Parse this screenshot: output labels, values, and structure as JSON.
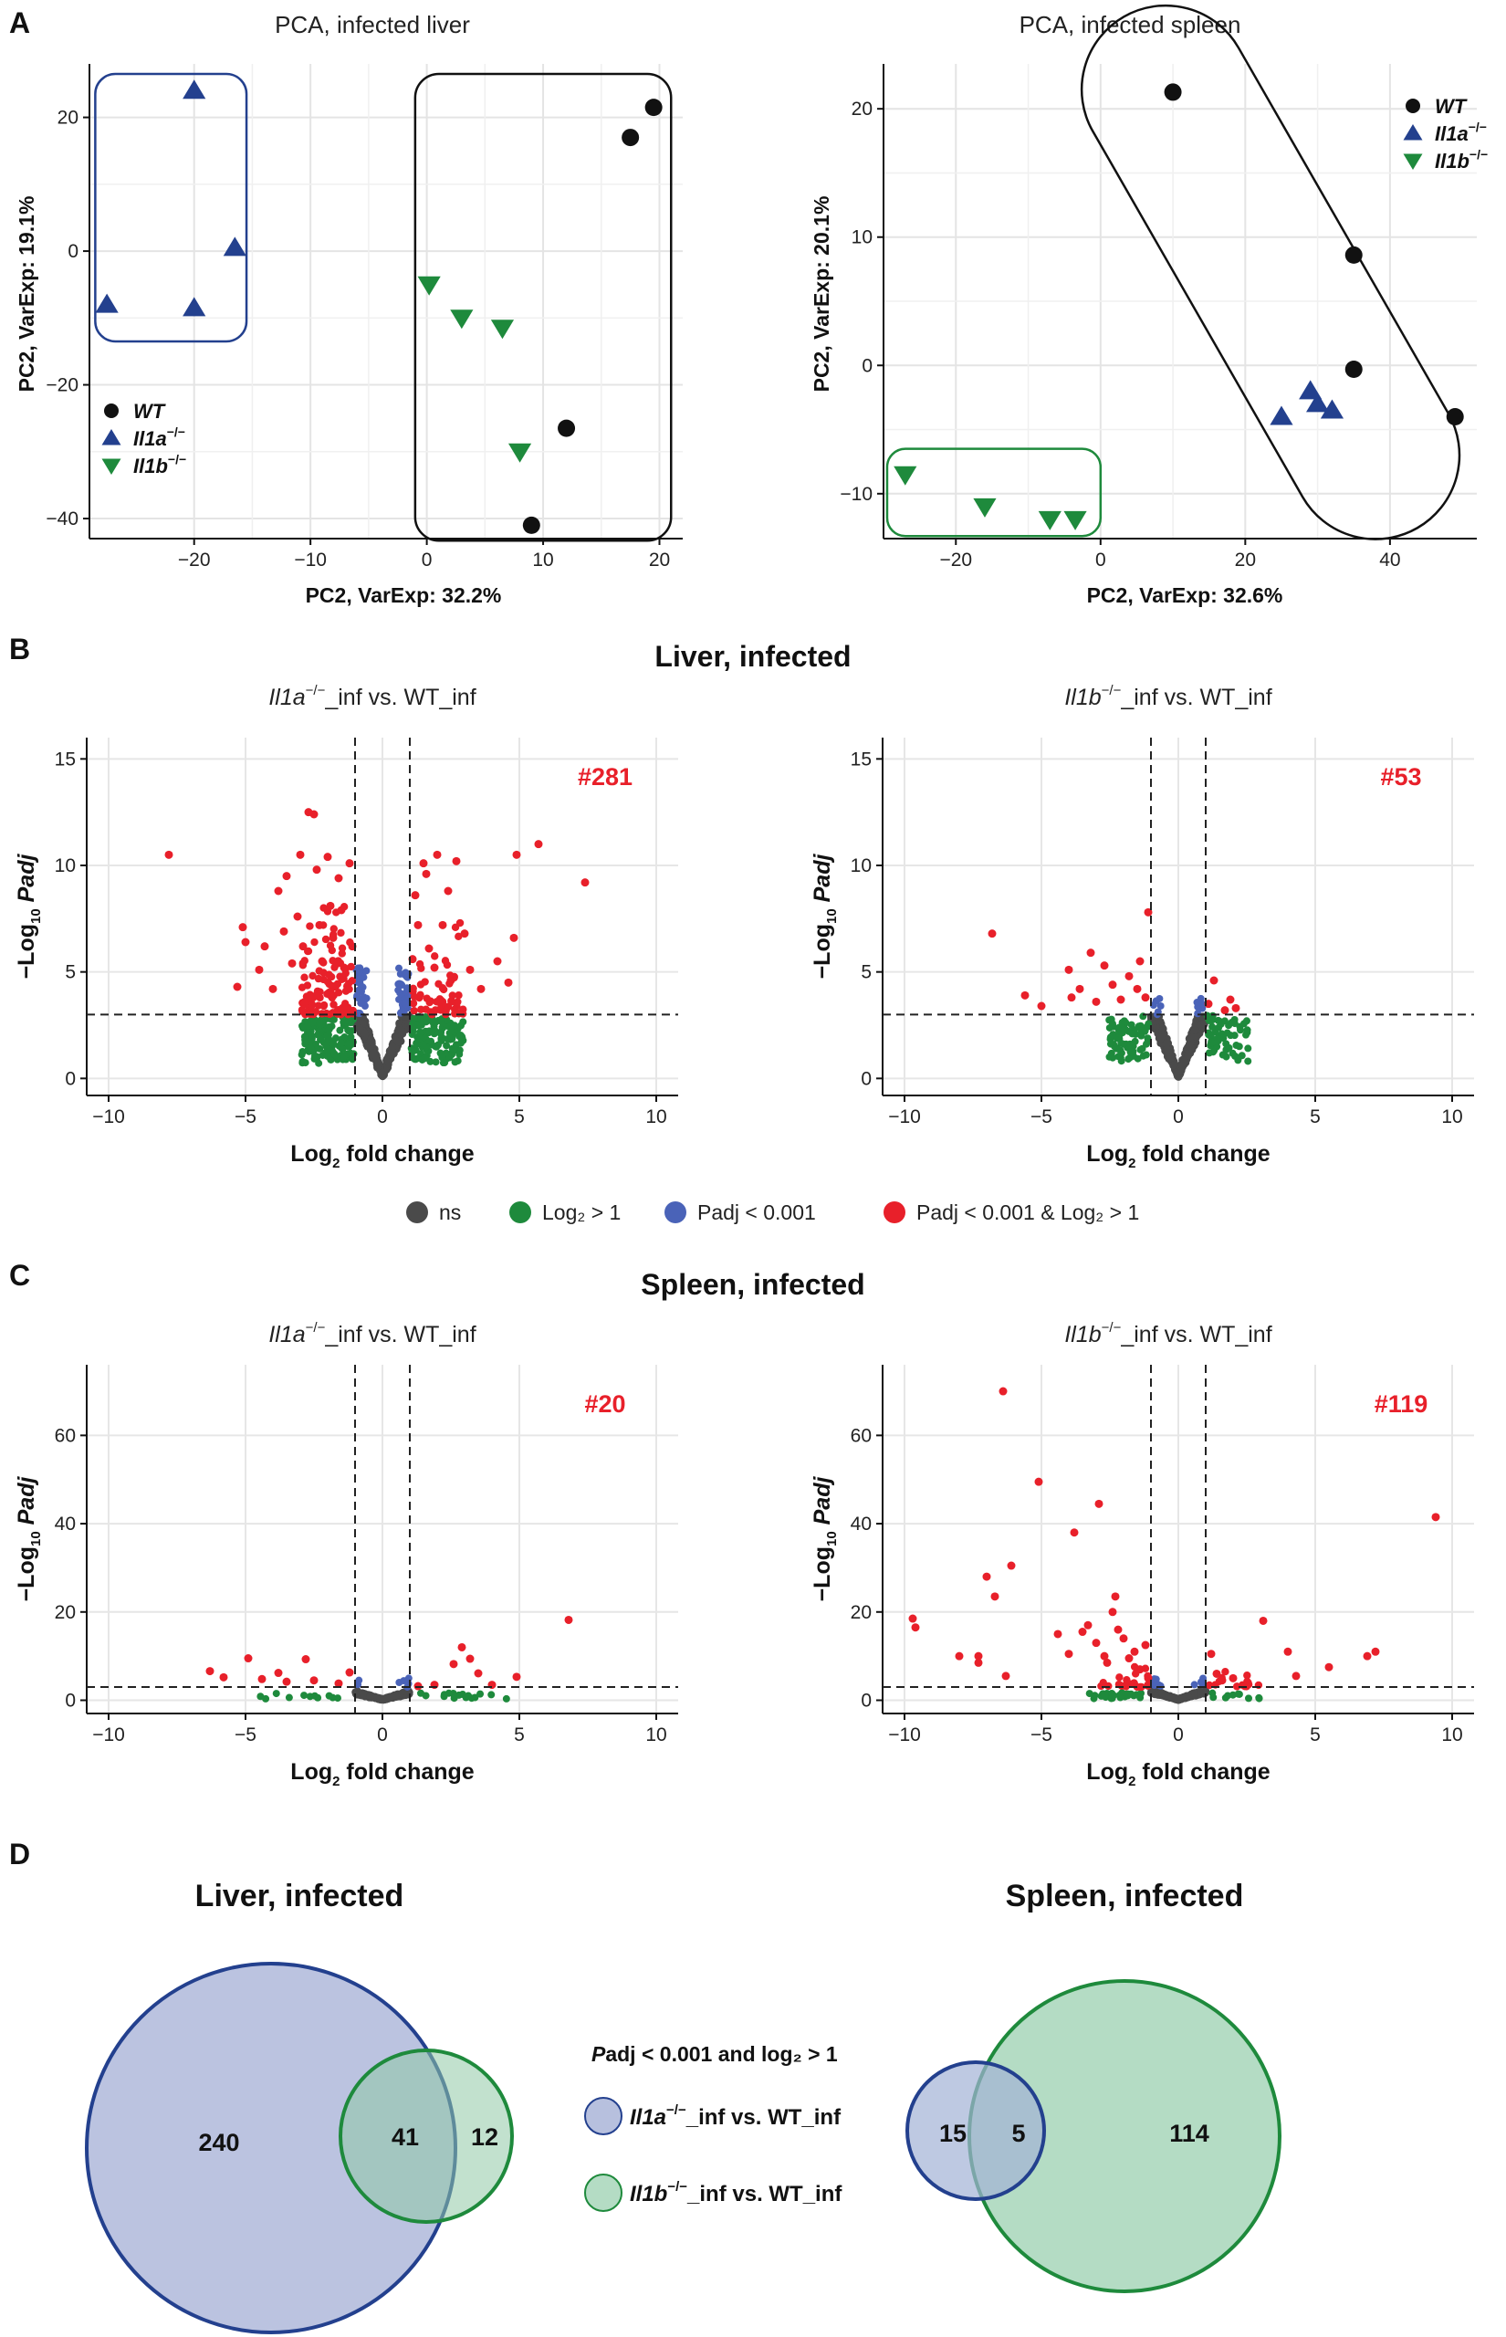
{
  "panels": {
    "A": {
      "letter": "A",
      "pca_liver": {
        "title": "PCA, infected liver",
        "xlabel": "PC2, VarExp: 32.2%",
        "ylabel": "PC2, VarExp: 19.1%",
        "xlim": [
          -29,
          22
        ],
        "ylim": [
          -43,
          28
        ],
        "xticks": [
          -20,
          -10,
          0,
          10,
          20
        ],
        "yticks": [
          -40,
          -20,
          0,
          20
        ],
        "legend": [
          {
            "label": "WT",
            "sup": "",
            "shape": "circle",
            "color": "#111111"
          },
          {
            "label": "Il1a",
            "sup": "−/−",
            "shape": "triangle-up",
            "color": "#23408e"
          },
          {
            "label": "Il1b",
            "sup": "−/−",
            "shape": "triangle-down",
            "color": "#1e8a3c"
          }
        ],
        "points": {
          "WT": [
            [
              19.5,
              21.5
            ],
            [
              17.5,
              17
            ],
            [
              12,
              -26.5
            ],
            [
              9,
              -41
            ]
          ],
          "Il1a": [
            [
              -20,
              24
            ],
            [
              -27.5,
              -8
            ],
            [
              -20,
              -8.5
            ],
            [
              -16.5,
              0.5
            ]
          ],
          "Il1b": [
            [
              0.2,
              -5
            ],
            [
              3,
              -10
            ],
            [
              6.5,
              -11.5
            ],
            [
              8,
              -30
            ]
          ]
        }
      },
      "pca_spleen": {
        "title": "PCA, infected spleen",
        "xlabel": "PC2, VarExp: 32.6%",
        "ylabel": "PC2, VarExp: 20.1%",
        "xlim": [
          -30,
          52
        ],
        "ylim": [
          -13.5,
          23.5
        ],
        "xticks": [
          -20,
          0,
          20,
          40
        ],
        "yticks": [
          -10,
          0,
          10,
          20
        ],
        "legend": [
          {
            "label": "WT",
            "sup": "",
            "shape": "circle",
            "color": "#111111"
          },
          {
            "label": "Il1a",
            "sup": "−/−",
            "shape": "triangle-up",
            "color": "#23408e"
          },
          {
            "label": "Il1b",
            "sup": "−/−",
            "shape": "triangle-down",
            "color": "#1e8a3c"
          }
        ],
        "points": {
          "WT": [
            [
              10,
              21.3
            ],
            [
              35,
              8.6
            ],
            [
              35,
              -0.3
            ],
            [
              49,
              -4
            ]
          ],
          "Il1a": [
            [
              25,
              -4
            ],
            [
              29,
              -2
            ],
            [
              30,
              -3
            ],
            [
              32,
              -3.5
            ]
          ],
          "Il1b": [
            [
              -27,
              -8.5
            ],
            [
              -16,
              -11
            ],
            [
              -7,
              -12
            ],
            [
              -3.5,
              -12
            ]
          ]
        }
      }
    },
    "B": {
      "letter": "B",
      "title": "Liver, infected",
      "left": {
        "subtitle_gene": "Il1a",
        "subtitle_sup": "−/−",
        "subtitle_rest": "_inf vs. WT_inf",
        "count": "#281",
        "ylim": [
          -0.8,
          16
        ],
        "yticks": [
          0,
          5,
          10,
          15
        ]
      },
      "right": {
        "subtitle_gene": "Il1b",
        "subtitle_sup": "−/−",
        "subtitle_rest": "_inf vs. WT_inf",
        "count": "#53",
        "ylim": [
          -0.8,
          16
        ],
        "yticks": [
          0,
          5,
          10,
          15
        ]
      },
      "xlabel_main": "Log",
      "xlabel_sub": "2",
      "xlabel_rest": " fold change",
      "ylabel_pre": "−Log",
      "ylabel_sub": "10",
      "ylabel_it": " Padj",
      "xlim": [
        -10.8,
        10.8
      ],
      "xticks": [
        -10,
        -5,
        0,
        5,
        10
      ]
    },
    "legend_volcano": [
      {
        "label": "ns",
        "color": "#4a4a4a"
      },
      {
        "label": "Log₂ > 1",
        "color": "#1e8a3c"
      },
      {
        "label": "Padj < 0.001",
        "color": "#4a63b8"
      },
      {
        "label": "Padj < 0.001 & Log₂ > 1",
        "color": "#e8202a"
      }
    ],
    "C": {
      "letter": "C",
      "title": "Spleen, infected",
      "left": {
        "subtitle_gene": "Il1a",
        "subtitle_sup": "−/−",
        "subtitle_rest": "_inf vs. WT_inf",
        "count": "#20",
        "ylim": [
          -3,
          76
        ],
        "yticks": [
          0,
          20,
          40,
          60
        ]
      },
      "right": {
        "subtitle_gene": "Il1b",
        "subtitle_sup": "−/−",
        "subtitle_rest": "_inf vs. WT_inf",
        "count": "#119",
        "ylim": [
          -3,
          76
        ],
        "yticks": [
          0,
          20,
          40,
          60
        ]
      }
    },
    "D": {
      "letter": "D",
      "liver_title": "Liver, infected",
      "spleen_title": "Spleen, infected",
      "legend_title": "Padj < 0.001 and log₂ > 1",
      "legend": [
        {
          "gene": "Il1a",
          "sup": "−/−",
          "rest": "_inf vs. WT_inf",
          "fill": "#b7c0de",
          "stroke": "#23408e"
        },
        {
          "gene": "Il1b",
          "sup": "−/−",
          "rest": "_inf vs. WT_inf",
          "fill": "#b4dcc4",
          "stroke": "#1e8a3c"
        }
      ],
      "liver_counts": {
        "only_a": "240",
        "both": "41",
        "only_b": "12"
      },
      "spleen_counts": {
        "only_a": "15",
        "both": "5",
        "only_b": "114"
      }
    }
  },
  "chart_data": [
    {
      "type": "scatter",
      "title": "PCA, infected liver",
      "xlabel": "PC2, VarExp: 32.2%",
      "ylabel": "PC2, VarExp: 19.1%",
      "series": [
        {
          "name": "WT",
          "points": [
            [
              19.5,
              21.5
            ],
            [
              17.5,
              17
            ],
            [
              12,
              -26.5
            ],
            [
              9,
              -41
            ]
          ]
        },
        {
          "name": "Il1a−/−",
          "points": [
            [
              -20,
              24
            ],
            [
              -27.5,
              -8
            ],
            [
              -20,
              -8.5
            ],
            [
              -16.5,
              0.5
            ]
          ]
        },
        {
          "name": "Il1b−/−",
          "points": [
            [
              0.2,
              -5
            ],
            [
              3,
              -10
            ],
            [
              6.5,
              -11.5
            ],
            [
              8,
              -30
            ]
          ]
        }
      ]
    },
    {
      "type": "scatter",
      "title": "PCA, infected spleen",
      "xlabel": "PC2, VarExp: 32.6%",
      "ylabel": "PC2, VarExp: 20.1%",
      "series": [
        {
          "name": "WT",
          "points": [
            [
              10,
              21.3
            ],
            [
              35,
              8.6
            ],
            [
              35,
              -0.3
            ],
            [
              49,
              -4
            ]
          ]
        },
        {
          "name": "Il1a−/−",
          "points": [
            [
              25,
              -4
            ],
            [
              29,
              -2
            ],
            [
              30,
              -3
            ],
            [
              32,
              -3.5
            ]
          ]
        },
        {
          "name": "Il1b−/−",
          "points": [
            [
              -27,
              -8.5
            ],
            [
              -16,
              -11
            ],
            [
              -7,
              -12
            ],
            [
              -3.5,
              -12
            ]
          ]
        }
      ]
    },
    {
      "type": "scatter",
      "title": "Liver, infected – Il1a−/−_inf vs. WT_inf",
      "significant_count": 281,
      "thresholds": {
        "log2fc": 1,
        "neglog10padj": 3
      },
      "significant_points": [
        [
          -7.8,
          10.5
        ],
        [
          -5.3,
          4.3
        ],
        [
          -5.1,
          7.1
        ],
        [
          -5,
          6.4
        ],
        [
          -4.5,
          5.1
        ],
        [
          -4.3,
          6.2
        ],
        [
          -4,
          4.2
        ],
        [
          -3.8,
          8.8
        ],
        [
          -3.6,
          6.9
        ],
        [
          -3.5,
          9.5
        ],
        [
          -3.3,
          5.4
        ],
        [
          -3.1,
          7.6
        ],
        [
          -3,
          10.5
        ],
        [
          -2.9,
          6.2
        ],
        [
          -2.7,
          12.5
        ],
        [
          -2.5,
          12.4
        ],
        [
          -2.4,
          9.8
        ],
        [
          -2.3,
          7.2
        ],
        [
          -2.2,
          5.5
        ],
        [
          -2,
          10.4
        ],
        [
          -1.9,
          8.1
        ],
        [
          -1.8,
          6.6
        ],
        [
          -1.6,
          9.4
        ],
        [
          -1.5,
          7.9
        ],
        [
          -1.4,
          5.2
        ],
        [
          -1.2,
          10.1
        ],
        [
          -1.1,
          6.2
        ],
        [
          1.1,
          5.6
        ],
        [
          1.2,
          8.6
        ],
        [
          1.3,
          7.2
        ],
        [
          1.5,
          10.1
        ],
        [
          1.6,
          9.6
        ],
        [
          1.7,
          6.1
        ],
        [
          1.9,
          5.2
        ],
        [
          2,
          10.5
        ],
        [
          2.2,
          7.2
        ],
        [
          2.4,
          8.8
        ],
        [
          2.5,
          4.6
        ],
        [
          2.7,
          10.2
        ],
        [
          3,
          6.8
        ],
        [
          3.2,
          5.1
        ],
        [
          3.6,
          4.2
        ],
        [
          4.2,
          5.5
        ],
        [
          4.6,
          4.5
        ],
        [
          4.8,
          6.6
        ],
        [
          4.9,
          10.5
        ],
        [
          5.7,
          11
        ],
        [
          7.4,
          9.2
        ]
      ]
    },
    {
      "type": "scatter",
      "title": "Liver, infected – Il1b−/−_inf vs. WT_inf",
      "significant_count": 53,
      "thresholds": {
        "log2fc": 1,
        "neglog10padj": 3
      },
      "significant_points": [
        [
          -6.8,
          6.8
        ],
        [
          -5.6,
          3.9
        ],
        [
          -5,
          3.4
        ],
        [
          -4,
          5.1
        ],
        [
          -3.9,
          3.8
        ],
        [
          -3.6,
          4.2
        ],
        [
          -3.2,
          5.9
        ],
        [
          -3,
          3.6
        ],
        [
          -2.7,
          5.3
        ],
        [
          -2.4,
          4.4
        ],
        [
          -2.1,
          3.7
        ],
        [
          -1.8,
          4.8
        ],
        [
          -1.5,
          4.2
        ],
        [
          -1.4,
          5.5
        ],
        [
          -1.2,
          3.8
        ],
        [
          -1.1,
          7.8
        ],
        [
          1.1,
          3.5
        ],
        [
          1.3,
          4.6
        ],
        [
          1.7,
          3.2
        ],
        [
          1.9,
          3.7
        ],
        [
          2.1,
          3.3
        ]
      ]
    },
    {
      "type": "scatter",
      "title": "Spleen, infected – Il1a−/−_inf vs. WT_inf",
      "significant_count": 20,
      "thresholds": {
        "log2fc": 1,
        "neglog10padj": 3
      },
      "significant_points": [
        [
          -6.3,
          6.6
        ],
        [
          -5.8,
          5.2
        ],
        [
          -4.9,
          9.5
        ],
        [
          -4.4,
          4.8
        ],
        [
          -3.8,
          6.2
        ],
        [
          -3.5,
          4.2
        ],
        [
          -2.8,
          9.3
        ],
        [
          -2.5,
          4.5
        ],
        [
          -1.6,
          3.8
        ],
        [
          -1.2,
          6.3
        ],
        [
          1.3,
          3.2
        ],
        [
          1.9,
          3.5
        ],
        [
          2.6,
          8.2
        ],
        [
          2.9,
          12
        ],
        [
          3.2,
          9.4
        ],
        [
          3.5,
          6.1
        ],
        [
          4,
          3.5
        ],
        [
          4.9,
          5.3
        ],
        [
          6.8,
          18.2
        ]
      ]
    },
    {
      "type": "scatter",
      "title": "Spleen, infected – Il1b−/−_inf vs. WT_inf",
      "significant_count": 119,
      "thresholds": {
        "log2fc": 1,
        "neglog10padj": 3
      },
      "significant_points": [
        [
          -9.7,
          18.5
        ],
        [
          -9.6,
          16.5
        ],
        [
          -8,
          10
        ],
        [
          -7.3,
          8.5
        ],
        [
          -7.3,
          10
        ],
        [
          -7,
          28
        ],
        [
          -6.7,
          23.5
        ],
        [
          -6.4,
          70
        ],
        [
          -6.3,
          5.5
        ],
        [
          -6.1,
          30.5
        ],
        [
          -5.1,
          49.5
        ],
        [
          -4.4,
          15
        ],
        [
          -4,
          10.5
        ],
        [
          -3.8,
          38
        ],
        [
          -3.5,
          15.5
        ],
        [
          -3.3,
          17
        ],
        [
          -3,
          13
        ],
        [
          -2.9,
          44.5
        ],
        [
          -2.7,
          10
        ],
        [
          -2.6,
          8.5
        ],
        [
          -2.4,
          20
        ],
        [
          -2.3,
          23.5
        ],
        [
          -2.2,
          16
        ],
        [
          -2,
          14
        ],
        [
          -1.8,
          9.5
        ],
        [
          -1.6,
          11
        ],
        [
          -1.4,
          7
        ],
        [
          -1.2,
          12.5
        ],
        [
          -1.1,
          5
        ],
        [
          1.2,
          10.5
        ],
        [
          1.4,
          6
        ],
        [
          1.6,
          4.5
        ],
        [
          2,
          5
        ],
        [
          2.5,
          3.5
        ],
        [
          3.1,
          18
        ],
        [
          4,
          11
        ],
        [
          4.3,
          5.5
        ],
        [
          5.5,
          7.5
        ],
        [
          6.9,
          10
        ],
        [
          7.2,
          11
        ],
        [
          9.4,
          41.5
        ]
      ]
    },
    {
      "type": "venn",
      "title": "Liver, infected",
      "sets": [
        "Il1a−/−_inf vs. WT_inf",
        "Il1b−/−_inf vs. WT_inf"
      ],
      "only_a": 240,
      "both": 41,
      "only_b": 12
    },
    {
      "type": "venn",
      "title": "Spleen, infected",
      "sets": [
        "Il1a−/−_inf vs. WT_inf",
        "Il1b−/−_inf vs. WT_inf"
      ],
      "only_a": 15,
      "both": 5,
      "only_b": 114
    }
  ]
}
